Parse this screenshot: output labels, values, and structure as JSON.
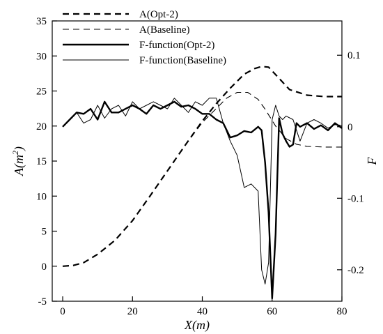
{
  "chart_data": {
    "type": "line",
    "xlabel": "X(m)",
    "ylabel_left": "A(m²)",
    "ylabel_right": "F",
    "xlim": [
      -3,
      80
    ],
    "ylim_left": [
      -5,
      35
    ],
    "ylim_right": [
      -0.244,
      0.148
    ],
    "xticks": [
      0,
      20,
      40,
      60,
      80
    ],
    "xtick_labels": [
      "0",
      "20",
      "40",
      "60",
      "80"
    ],
    "yticks_left": [
      -5,
      0,
      5,
      10,
      15,
      20,
      25,
      30,
      35
    ],
    "ytick_labels_left": [
      "-5",
      "0",
      "5",
      "10",
      "15",
      "20",
      "25",
      "30",
      "35"
    ],
    "yticks_right": [
      -0.2,
      -0.1,
      0,
      0.1
    ],
    "ytick_labels_right": [
      "-0.2",
      "-0.1",
      "0",
      "0.1"
    ],
    "grid": false,
    "legend_position": "top-left",
    "series": [
      {
        "name": "A(Opt-2)",
        "axis": "left",
        "style": "dashed-thick",
        "x": [
          0,
          3,
          6,
          10,
          15,
          20,
          25,
          30,
          35,
          40,
          44,
          48,
          52,
          55,
          57,
          59,
          62,
          65,
          70,
          75,
          80
        ],
        "y": [
          0,
          0.1,
          0.5,
          1.7,
          3.7,
          6.5,
          10.0,
          13.6,
          17.2,
          20.7,
          23.2,
          25.4,
          27.4,
          28.2,
          28.5,
          28.4,
          26.8,
          25.2,
          24.4,
          24.2,
          24.2
        ]
      },
      {
        "name": "A(Baseline)",
        "axis": "left",
        "style": "dashed-thin",
        "x": [
          0,
          3,
          6,
          10,
          15,
          20,
          25,
          30,
          35,
          40,
          44,
          47,
          50,
          53,
          56,
          58,
          61,
          64,
          67,
          70,
          75,
          80
        ],
        "y": [
          0,
          0.1,
          0.5,
          1.7,
          3.7,
          6.5,
          10.0,
          13.6,
          17.2,
          20.5,
          22.5,
          24.0,
          24.8,
          24.8,
          23.8,
          22.4,
          20.0,
          18.2,
          17.4,
          17.1,
          17.0,
          17.0
        ]
      },
      {
        "name": "F-function(Opt-2)",
        "axis": "right",
        "style": "solid-thick",
        "x": [
          0,
          2,
          4,
          6,
          8,
          10,
          12,
          14,
          16,
          18,
          20,
          22,
          24,
          26,
          28,
          30,
          32,
          34,
          36,
          38,
          40,
          42,
          44,
          46,
          48,
          50,
          52,
          54,
          56,
          57,
          58,
          59,
          60,
          61,
          62,
          63,
          64,
          65,
          66,
          67,
          68,
          70,
          72,
          74,
          76,
          78,
          80
        ],
        "y": [
          0,
          0.01,
          0.02,
          0.018,
          0.025,
          0.01,
          0.035,
          0.02,
          0.02,
          0.025,
          0.03,
          0.025,
          0.018,
          0.03,
          0.025,
          0.03,
          0.035,
          0.028,
          0.03,
          0.025,
          0.018,
          0.018,
          0.01,
          0.005,
          -0.015,
          -0.012,
          -0.006,
          -0.008,
          0,
          -0.005,
          -0.05,
          -0.12,
          -0.24,
          -0.15,
          0.012,
          -0.01,
          -0.02,
          -0.028,
          -0.025,
          0.005,
          0,
          0.005,
          -0.003,
          0.002,
          -0.005,
          0.005,
          -0.002
        ]
      },
      {
        "name": "F-function(Baseline)",
        "axis": "right",
        "style": "solid-thin",
        "x": [
          0,
          2,
          4,
          6,
          8,
          10,
          12,
          14,
          16,
          18,
          20,
          22,
          24,
          26,
          28,
          30,
          32,
          34,
          36,
          38,
          40,
          42,
          44,
          46,
          48,
          50,
          52,
          54,
          56,
          57,
          58,
          59,
          60,
          61,
          62,
          63,
          64,
          66,
          68,
          70,
          72,
          74,
          76,
          78,
          80
        ],
        "y": [
          0,
          0.01,
          0.02,
          0.005,
          0.01,
          0.03,
          0.012,
          0.025,
          0.03,
          0.015,
          0.035,
          0.025,
          0.03,
          0.035,
          0.03,
          0.025,
          0.04,
          0.03,
          0.02,
          0.035,
          0.03,
          0.04,
          0.04,
          0.005,
          -0.02,
          -0.04,
          -0.085,
          -0.08,
          -0.09,
          -0.2,
          -0.22,
          -0.19,
          0.01,
          0.03,
          0.015,
          0.01,
          0.015,
          0.01,
          -0.02,
          0.005,
          0.01,
          0.005,
          -0.002,
          0.003,
          0.002
        ]
      }
    ]
  }
}
